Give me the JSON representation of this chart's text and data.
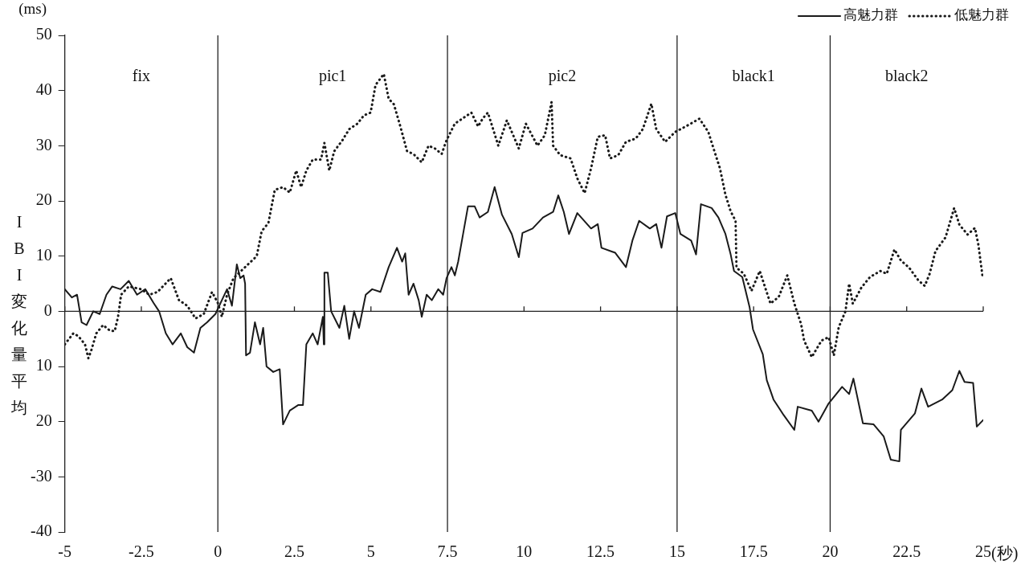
{
  "chart_data": {
    "type": "line",
    "xlabel": "(秒)",
    "ylabel": "IBI変化量平均",
    "annotations": [
      "(ms)",
      "fix",
      "pic1",
      "pic2",
      "black1",
      "black2"
    ],
    "xlim": [
      -5,
      25
    ],
    "xticks": [
      -5,
      -2.5,
      0,
      2.5,
      5,
      7.5,
      10,
      12.5,
      15,
      17.5,
      20,
      22.5,
      25
    ],
    "ylim": [
      -40,
      50
    ],
    "yticks": [
      {
        "value": -40,
        "label": "-40"
      },
      {
        "value": -30,
        "label": "-30"
      },
      {
        "value": -20,
        "label": "20"
      },
      {
        "value": -10,
        "label": "10"
      },
      0,
      10,
      20,
      30,
      40,
      50
    ],
    "legend": "top right",
    "marker": "none",
    "ref_lines": [
      {
        "axis": "x",
        "value": 0
      },
      {
        "axis": "x",
        "value": 7.5
      },
      {
        "axis": "x",
        "value": 15
      },
      {
        "axis": "x",
        "value": 20
      }
    ],
    "series": [
      {
        "name": "高魅力群",
        "color": "#1a1a1a",
        "line_style": "solid",
        "x": [
          -5,
          -4.77,
          -4.6,
          -4.45,
          -4.29,
          -4.07,
          -3.86,
          -3.64,
          -3.45,
          -3.18,
          -2.91,
          -2.64,
          -2.37,
          -2.1,
          -1.92,
          -1.7,
          -1.48,
          -1.21,
          -1,
          -0.78,
          -0.57,
          -0.35,
          -0.08,
          0.13,
          0.3,
          0.46,
          0.62,
          0.73,
          0.84,
          0.89,
          0.92,
          1.05,
          1.21,
          1.38,
          1.48,
          1.59,
          1.81,
          2.02,
          2.13,
          2.35,
          2.62,
          2.78,
          2.89,
          3.1,
          3.26,
          3.43,
          3.46,
          3.48,
          3.59,
          3.7,
          3.97,
          4.13,
          4.29,
          4.45,
          4.61,
          4.83,
          5.04,
          5.31,
          5.58,
          5.85,
          6.02,
          6.12,
          6.23,
          6.39,
          6.56,
          6.66,
          6.82,
          6.99,
          7.2,
          7.36,
          7.47,
          7.63,
          7.74,
          7.85,
          8.01,
          8.17,
          8.39,
          8.55,
          8.82,
          9.04,
          9.28,
          9.6,
          9.83,
          9.95,
          10.28,
          10.62,
          10.95,
          11.12,
          11.3,
          11.47,
          11.74,
          12.19,
          12.41,
          12.53,
          12.98,
          13.33,
          13.54,
          13.76,
          14.11,
          14.32,
          14.49,
          14.67,
          14.94,
          15.11,
          15.46,
          15.62,
          15.78,
          16.13,
          16.35,
          16.58,
          16.75,
          16.86,
          17.13,
          17.37,
          17.48,
          17.8,
          17.93,
          18.15,
          18.48,
          18.83,
          18.94,
          19.4,
          19.62,
          19.95,
          20.39,
          20.62,
          20.76,
          21.07,
          21.42,
          21.75,
          21.98,
          22.26,
          22.31,
          22.77,
          22.98,
          23.2,
          23.66,
          23.99,
          24.22,
          24.39,
          24.67,
          24.79,
          25
        ],
        "values": [
          4,
          2.5,
          3,
          -2,
          -2.5,
          0,
          -0.5,
          3,
          4.5,
          4,
          5.5,
          3,
          4,
          1.5,
          0,
          -4,
          -6,
          -4,
          -6.5,
          -7.5,
          -3,
          -2,
          -0.5,
          2,
          4,
          1,
          8.5,
          6,
          6.5,
          5,
          -8,
          -7.5,
          -2,
          -6,
          -3,
          -10,
          -11,
          -10.5,
          -20.5,
          -18,
          -17,
          -17,
          -6,
          -4,
          -6,
          -1,
          -6,
          7,
          7,
          0,
          -3,
          1,
          -5,
          0,
          -3,
          3,
          4,
          3.5,
          8,
          11.5,
          9,
          10.5,
          3,
          5,
          2,
          -1,
          3,
          2,
          4,
          3,
          6,
          8,
          6.5,
          9,
          14,
          19,
          19,
          17,
          18,
          22.5,
          17.5,
          14,
          9.8,
          14.2,
          15,
          17,
          18,
          21,
          18,
          14,
          17.8,
          15,
          15.8,
          11.5,
          10.6,
          8,
          12.8,
          16.4,
          15,
          15.8,
          11.5,
          17.2,
          17.8,
          14,
          12.8,
          10.3,
          19.4,
          18.7,
          17,
          14,
          10.3,
          7.3,
          6.2,
          0.7,
          -3.3,
          -7.8,
          -12.5,
          -16,
          -18.8,
          -21.5,
          -17.3,
          -18,
          -20,
          -16.7,
          -13.7,
          -15,
          -12.2,
          -20.3,
          -20.5,
          -22.7,
          -26.9,
          -27.2,
          -21.5,
          -18.5,
          -14,
          -17.3,
          -16,
          -14.3,
          -10.8,
          -12.8,
          -13,
          -20.9,
          -19.7
        ]
      },
      {
        "name": "低魅力群",
        "color": "#1a1a1a",
        "line_style": "dotted",
        "x": [
          -5,
          -4.72,
          -4.56,
          -4.34,
          -4.23,
          -4.13,
          -3.97,
          -3.75,
          -3.53,
          -3.37,
          -3.26,
          -3.16,
          -2.91,
          -2.51,
          -2.24,
          -1.97,
          -1.54,
          -1.27,
          -1,
          -0.73,
          -0.46,
          -0.19,
          0,
          0.13,
          0.3,
          0.51,
          0.89,
          1.27,
          1.43,
          1.65,
          1.86,
          2.13,
          2.35,
          2.56,
          2.72,
          2.89,
          3.1,
          3.37,
          3.48,
          3.64,
          3.8,
          4.07,
          4.29,
          4.56,
          4.77,
          4.99,
          5.15,
          5.42,
          5.58,
          5.75,
          5.96,
          6.18,
          6.39,
          6.66,
          6.88,
          7.09,
          7.31,
          7.47,
          7.74,
          8.01,
          8.28,
          8.5,
          8.66,
          8.82,
          9.16,
          9.44,
          9.83,
          10.06,
          10.44,
          10.68,
          10.9,
          10.95,
          11.18,
          11.52,
          11.74,
          11.98,
          12.19,
          12.41,
          12.65,
          12.81,
          13.08,
          13.33,
          13.65,
          13.88,
          14.16,
          14.32,
          14.61,
          14.94,
          15.35,
          15.73,
          16.02,
          16.19,
          16.4,
          16.58,
          16.75,
          16.91,
          16.94,
          17.18,
          17.43,
          17.7,
          18.05,
          18.32,
          18.6,
          18.83,
          19.05,
          19.15,
          19.4,
          19.72,
          19.95,
          20.12,
          20.28,
          20.5,
          20.62,
          20.74,
          21.02,
          21.3,
          21.64,
          21.85,
          22.1,
          22.31,
          22.58,
          22.88,
          23.09,
          23.25,
          23.44,
          23.77,
          24.05,
          24.22,
          24.49,
          24.73,
          24.84,
          24.98
        ],
        "values": [
          -6,
          -4,
          -4.5,
          -6,
          -8.5,
          -7,
          -4,
          -2.5,
          -3.5,
          -3.6,
          -1,
          3,
          4.5,
          4,
          3,
          3.5,
          6,
          2,
          1,
          -1.3,
          -0.5,
          3.5,
          1.5,
          -1,
          3,
          6,
          8,
          10,
          14.5,
          16,
          22,
          22.5,
          21.5,
          25.5,
          22.5,
          25.5,
          27.5,
          27.5,
          30.5,
          25.5,
          29,
          31,
          33,
          34,
          35.5,
          36,
          41,
          43,
          38.5,
          37.5,
          33.5,
          29,
          28.5,
          27,
          30,
          29.5,
          28.5,
          31,
          34,
          35,
          36,
          33.5,
          35,
          36,
          30,
          34.6,
          29.5,
          34,
          30,
          31.9,
          37.9,
          30,
          28.3,
          27.7,
          24.1,
          21.4,
          25.9,
          31.6,
          31.9,
          27.7,
          28.3,
          30.7,
          31.3,
          33,
          37.6,
          33,
          30.7,
          32.5,
          33.7,
          34.9,
          32.5,
          29.5,
          25.9,
          21.1,
          18.1,
          16.4,
          7.9,
          6.8,
          3.7,
          7.3,
          1.4,
          2.6,
          6.5,
          1.4,
          -2.3,
          -5.3,
          -8.3,
          -5.3,
          -4.7,
          -8,
          -2.9,
          0,
          5,
          1.4,
          4.3,
          6.2,
          7.3,
          6.8,
          11.2,
          9.2,
          7.9,
          5.6,
          4.6,
          6.8,
          10.9,
          13.4,
          18.7,
          15.7,
          13.9,
          15.1,
          12.1,
          6.2
        ]
      }
    ]
  }
}
